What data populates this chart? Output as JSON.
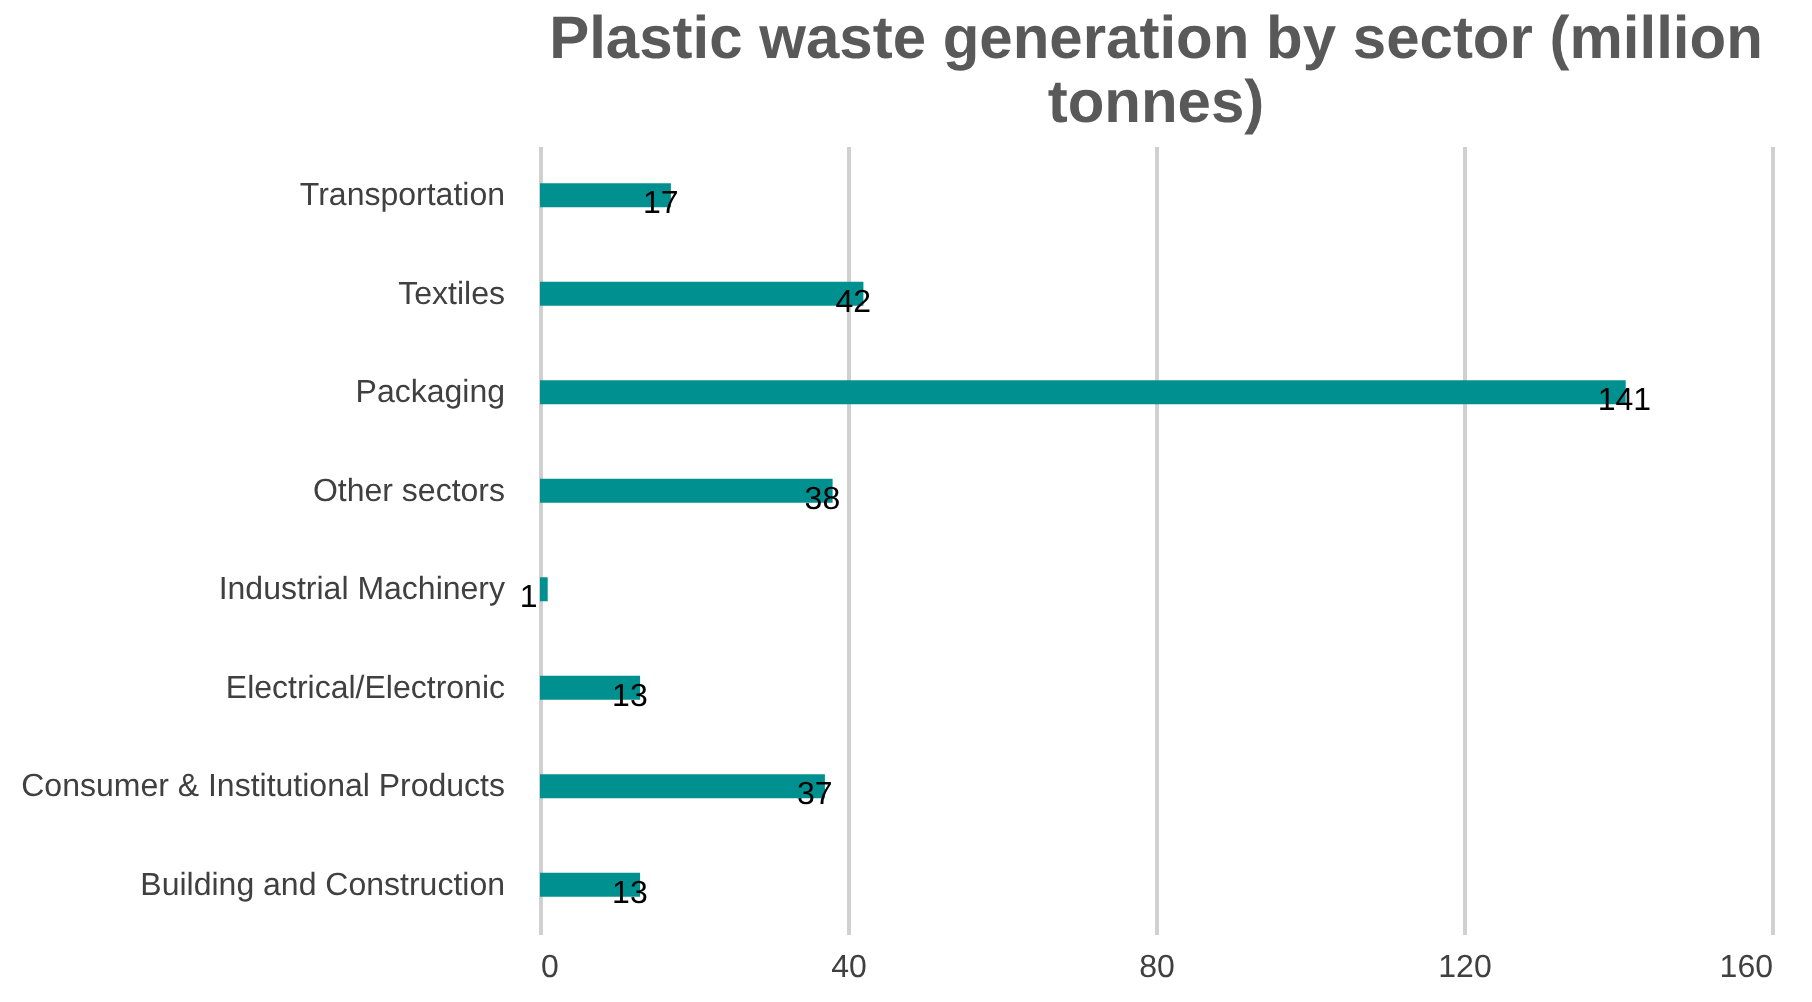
{
  "chart_data": {
    "type": "bar",
    "orientation": "horizontal",
    "title": "Plastic waste generation by sector (million tonnes)",
    "categories": [
      "Transportation",
      "Textiles",
      "Packaging",
      "Other sectors",
      "Industrial Machinery",
      "Electrical/Electronic",
      "Consumer & Institutional Products",
      "Building and Construction"
    ],
    "values": [
      17,
      42,
      141,
      38,
      1,
      13,
      37,
      13
    ],
    "color": "#009090",
    "xlim": [
      0,
      160
    ],
    "xticks": [
      0,
      40,
      80,
      120,
      160
    ],
    "grid": "x",
    "data_labels": true
  }
}
